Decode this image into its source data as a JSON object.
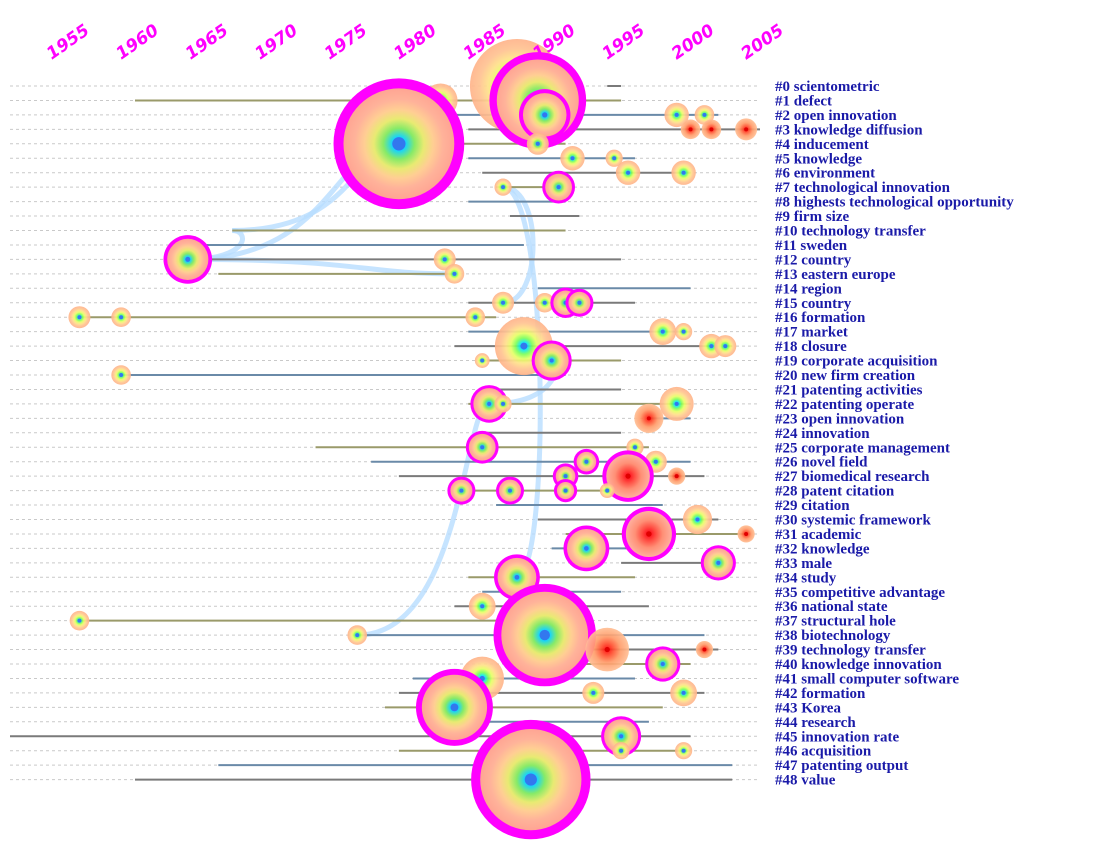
{
  "chart_data": {
    "type": "timeline",
    "title": "",
    "xlabel": "",
    "ylabel": "",
    "xlim": [
      1952,
      2006
    ],
    "x_ticks": [
      1955,
      1960,
      1965,
      1970,
      1975,
      1980,
      1985,
      1990,
      1995,
      2000,
      2005
    ],
    "x_tick_labels": [
      "1955",
      "1960",
      "1965",
      "1970",
      "1975",
      "1980",
      "1985",
      "1990",
      "1995",
      "2000",
      "2005"
    ],
    "grid": true,
    "colors": {
      "year_label": "#ff00ff",
      "cluster_label": "#1a1aa8",
      "burst_ring": "#ff00ff",
      "row_line": "#c9c9c9"
    },
    "clusters": [
      {
        "id": 0,
        "label": "#0 scientometric",
        "start": 1995,
        "end": 1996,
        "nodes": [
          {
            "year": 1988.5,
            "size": 3.5
          }
        ]
      },
      {
        "id": 1,
        "label": "#1 defect",
        "start": 1961,
        "end": 1996,
        "nodes": [
          {
            "year": 1983,
            "size": 1.0
          },
          {
            "year": 1990,
            "size": 3.0,
            "burst": true
          }
        ]
      },
      {
        "id": 2,
        "label": "#2 open innovation",
        "start": 1982,
        "end": 2003,
        "nodes": [
          {
            "year": 1990.5,
            "size": 1.4,
            "burst": true
          },
          {
            "year": 2000,
            "size": 0.6
          },
          {
            "year": 2002,
            "size": 0.4
          }
        ]
      },
      {
        "id": 3,
        "label": "#3 knowledge diffusion",
        "start": 1985,
        "end": 2006,
        "nodes": [
          {
            "year": 2001,
            "size": 0.4
          },
          {
            "year": 2002.5,
            "size": 0.4
          },
          {
            "year": 2005,
            "size": 0.5
          }
        ]
      },
      {
        "id": 4,
        "label": "#4 inducement",
        "start": 1980,
        "end": 1992,
        "nodes": [
          {
            "year": 1980,
            "size": 4.2,
            "burst": true
          },
          {
            "year": 1990,
            "size": 0.5
          }
        ]
      },
      {
        "id": 5,
        "label": "#5 knowledge",
        "start": 1985,
        "end": 1997,
        "nodes": [
          {
            "year": 1992.5,
            "size": 0.6
          },
          {
            "year": 1995.5,
            "size": 0.3
          }
        ]
      },
      {
        "id": 6,
        "label": "#6 environment",
        "start": 1986,
        "end": 2001,
        "nodes": [
          {
            "year": 1996.5,
            "size": 0.6
          },
          {
            "year": 2000.5,
            "size": 0.6
          }
        ]
      },
      {
        "id": 7,
        "label": "#7 technological innovation",
        "start": 1987,
        "end": 1992,
        "nodes": [
          {
            "year": 1987.5,
            "size": 0.3
          },
          {
            "year": 1991.5,
            "size": 0.7,
            "burst": true
          }
        ]
      },
      {
        "id": 8,
        "label": "#8 highests technological opportunity",
        "start": 1985,
        "end": 1992,
        "nodes": []
      },
      {
        "id": 9,
        "label": "#9 firm size",
        "start": 1988,
        "end": 1993,
        "nodes": []
      },
      {
        "id": 10,
        "label": "#10 technology transfer",
        "start": 1968,
        "end": 1992,
        "nodes": []
      },
      {
        "id": 11,
        "label": "#11 sweden",
        "start": 1965,
        "end": 1989,
        "nodes": []
      },
      {
        "id": 12,
        "label": "#12 country",
        "start": 1964,
        "end": 1996,
        "nodes": [
          {
            "year": 1964.8,
            "size": 1.3,
            "burst": true
          },
          {
            "year": 1983.3,
            "size": 0.5
          }
        ]
      },
      {
        "id": 13,
        "label": "#13 eastern europe",
        "start": 1967,
        "end": 1984,
        "nodes": [
          {
            "year": 1984,
            "size": 0.4
          }
        ]
      },
      {
        "id": 14,
        "label": "#14 region",
        "start": 1990,
        "end": 2001,
        "nodes": []
      },
      {
        "id": 15,
        "label": "#15 country",
        "start": 1985,
        "end": 1997,
        "nodes": [
          {
            "year": 1987.5,
            "size": 0.5
          },
          {
            "year": 1990.5,
            "size": 0.4
          },
          {
            "year": 1992,
            "size": 0.6,
            "burst": true
          },
          {
            "year": 1993,
            "size": 0.5,
            "burst": true
          }
        ]
      },
      {
        "id": 16,
        "label": "#16 formation",
        "start": 1957,
        "end": 1987,
        "nodes": [
          {
            "year": 1957,
            "size": 0.5
          },
          {
            "year": 1960,
            "size": 0.4
          },
          {
            "year": 1985.5,
            "size": 0.4
          }
        ]
      },
      {
        "id": 17,
        "label": "#17 market",
        "start": 1985,
        "end": 2001,
        "nodes": [
          {
            "year": 1999,
            "size": 0.7
          },
          {
            "year": 2000.5,
            "size": 0.3
          }
        ]
      },
      {
        "id": 18,
        "label": "#18 closure",
        "start": 1984,
        "end": 2004,
        "nodes": [
          {
            "year": 1989,
            "size": 2.0
          },
          {
            "year": 2002.5,
            "size": 0.6
          },
          {
            "year": 2003.5,
            "size": 0.5
          }
        ]
      },
      {
        "id": 19,
        "label": "#19 corporate acquisition",
        "start": 1986,
        "end": 1996,
        "nodes": [
          {
            "year": 1991,
            "size": 1.0,
            "burst": true
          },
          {
            "year": 1986,
            "size": 0.2
          }
        ]
      },
      {
        "id": 20,
        "label": "#20 new firm creation",
        "start": 1960,
        "end": 1992,
        "nodes": [
          {
            "year": 1960,
            "size": 0.4
          }
        ]
      },
      {
        "id": 21,
        "label": "#21 patenting activities",
        "start": 1986,
        "end": 1996,
        "nodes": []
      },
      {
        "id": 22,
        "label": "#22 patenting operate",
        "start": 1985,
        "end": 2001,
        "nodes": [
          {
            "year": 1986.5,
            "size": 0.9,
            "burst": true
          },
          {
            "year": 1987.5,
            "size": 0.3
          },
          {
            "year": 2000,
            "size": 1.0
          }
        ]
      },
      {
        "id": 23,
        "label": "#23 open innovation",
        "start": 1998,
        "end": 2001,
        "nodes": [
          {
            "year": 1998,
            "size": 0.8
          }
        ]
      },
      {
        "id": 24,
        "label": "#24 innovation",
        "start": 1986,
        "end": 1996,
        "nodes": []
      },
      {
        "id": 25,
        "label": "#25 corporate management",
        "start": 1974,
        "end": 1998,
        "nodes": [
          {
            "year": 1986,
            "size": 0.7,
            "burst": true
          },
          {
            "year": 1997,
            "size": 0.3
          }
        ]
      },
      {
        "id": 26,
        "label": "#26 novel field",
        "start": 1978,
        "end": 2001,
        "nodes": [
          {
            "year": 1993.5,
            "size": 0.4,
            "burst": true
          },
          {
            "year": 1998.5,
            "size": 0.5
          }
        ]
      },
      {
        "id": 27,
        "label": "#27 biomedical research",
        "start": 1980,
        "end": 2002,
        "nodes": [
          {
            "year": 1992,
            "size": 0.4,
            "burst": true
          },
          {
            "year": 1996.5,
            "size": 1.4,
            "burst": true
          },
          {
            "year": 2000,
            "size": 0.3
          }
        ]
      },
      {
        "id": 28,
        "label": "#28 patent citation",
        "start": 1984,
        "end": 1998,
        "nodes": [
          {
            "year": 1984.5,
            "size": 0.5,
            "burst": true
          },
          {
            "year": 1988,
            "size": 0.5,
            "burst": true
          },
          {
            "year": 1992,
            "size": 0.3,
            "burst": true
          },
          {
            "year": 1995,
            "size": 0.2
          }
        ]
      },
      {
        "id": 29,
        "label": "#29 citation",
        "start": 1987,
        "end": 1999,
        "nodes": []
      },
      {
        "id": 30,
        "label": "#30 systemic framework",
        "start": 1990,
        "end": 2003,
        "nodes": [
          {
            "year": 2001.5,
            "size": 0.8
          }
        ]
      },
      {
        "id": 31,
        "label": "#31 academic",
        "start": 1992,
        "end": 2005,
        "nodes": [
          {
            "year": 1998,
            "size": 1.5,
            "burst": true
          },
          {
            "year": 2005,
            "size": 0.3
          }
        ]
      },
      {
        "id": 32,
        "label": "#32 knowledge",
        "start": 1991,
        "end": 1998,
        "nodes": [
          {
            "year": 1993.5,
            "size": 1.2,
            "burst": true
          }
        ]
      },
      {
        "id": 33,
        "label": "#33 male",
        "start": 1996,
        "end": 2004,
        "nodes": [
          {
            "year": 2003,
            "size": 0.8,
            "burst": true
          }
        ]
      },
      {
        "id": 34,
        "label": "#34 study",
        "start": 1985,
        "end": 1997,
        "nodes": [
          {
            "year": 1988.5,
            "size": 1.2,
            "burst": true
          }
        ]
      },
      {
        "id": 35,
        "label": "#35 competitive advantage",
        "start": 1986,
        "end": 1996,
        "nodes": []
      },
      {
        "id": 36,
        "label": "#36 national state",
        "start": 1984,
        "end": 1998,
        "nodes": [
          {
            "year": 1986,
            "size": 0.7
          },
          {
            "year": 1990.5,
            "size": 0.3
          }
        ]
      },
      {
        "id": 37,
        "label": "#37 structural hole",
        "start": 1957,
        "end": 1993,
        "nodes": [
          {
            "year": 1957,
            "size": 0.4
          }
        ]
      },
      {
        "id": 38,
        "label": "#38 biotechnology",
        "start": 1977,
        "end": 2002,
        "nodes": [
          {
            "year": 1977,
            "size": 0.4
          },
          {
            "year": 1990.5,
            "size": 3.2,
            "burst": true
          }
        ]
      },
      {
        "id": 39,
        "label": "#39 technology transfer",
        "start": 1990,
        "end": 2003,
        "nodes": [
          {
            "year": 1995,
            "size": 1.4
          },
          {
            "year": 2002,
            "size": 0.3
          }
        ]
      },
      {
        "id": 40,
        "label": "#40 knowledge innovation",
        "start": 1992,
        "end": 2001,
        "nodes": [
          {
            "year": 1999,
            "size": 0.8,
            "burst": true
          }
        ]
      },
      {
        "id": 41,
        "label": "#41 small computer software",
        "start": 1981,
        "end": 1997,
        "nodes": [
          {
            "year": 1986,
            "size": 1.4
          }
        ]
      },
      {
        "id": 42,
        "label": "#42 formation",
        "start": 1980,
        "end": 2002,
        "nodes": [
          {
            "year": 1994,
            "size": 0.5
          },
          {
            "year": 2000.5,
            "size": 0.7
          }
        ]
      },
      {
        "id": 43,
        "label": "#43 Korea",
        "start": 1979,
        "end": 1999,
        "nodes": [
          {
            "year": 1984,
            "size": 2.3,
            "burst": true
          }
        ]
      },
      {
        "id": 44,
        "label": "#44 research",
        "start": 1986,
        "end": 1998,
        "nodes": []
      },
      {
        "id": 45,
        "label": "#45 innovation rate",
        "start": 1952,
        "end": 2001,
        "nodes": [
          {
            "year": 1996,
            "size": 1.0,
            "burst": true
          }
        ]
      },
      {
        "id": 46,
        "label": "#46 acquisition",
        "start": 1980,
        "end": 2001,
        "nodes": [
          {
            "year": 1996,
            "size": 0.3
          },
          {
            "year": 2000.5,
            "size": 0.3
          }
        ]
      },
      {
        "id": 47,
        "label": "#47 patenting output",
        "start": 1967,
        "end": 2004,
        "nodes": [
          {
            "year": 1987,
            "size": 0.7
          }
        ]
      },
      {
        "id": 48,
        "label": "#48 value",
        "start": 1961,
        "end": 2004,
        "nodes": [
          {
            "year": 1989.5,
            "size": 3.8,
            "burst": true
          }
        ]
      }
    ]
  }
}
